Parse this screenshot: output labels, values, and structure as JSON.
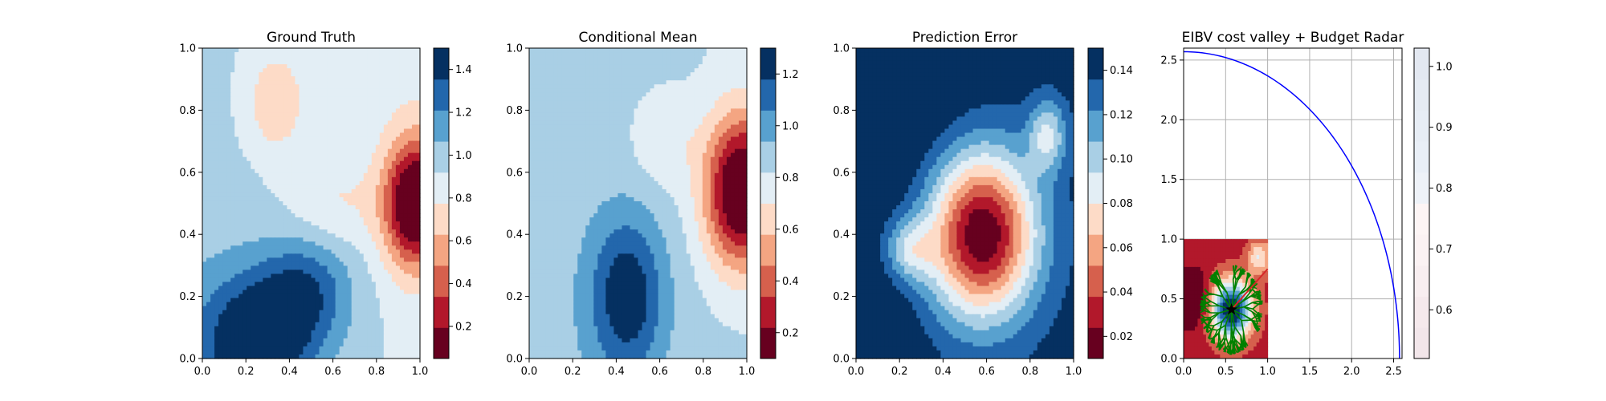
{
  "chart_data": [
    {
      "type": "heatmap",
      "title": "Ground Truth",
      "xlim": [
        0,
        1
      ],
      "ylim": [
        0,
        1
      ],
      "xticks": [
        "0.0",
        "0.2",
        "0.4",
        "0.6",
        "0.8",
        "1.0"
      ],
      "yticks": [
        "0.0",
        "0.2",
        "0.4",
        "0.6",
        "0.8",
        "1.0"
      ],
      "colormap": "RdBu",
      "colorbar": {
        "range": [
          0.05,
          1.5
        ],
        "ticks": [
          "0.2",
          "0.4",
          "0.6",
          "0.8",
          "1.0",
          "1.2",
          "1.4"
        ]
      },
      "field_features": [
        {
          "type": "blob",
          "x": 0.95,
          "y": 0.5,
          "value_delta": -0.9
        },
        {
          "type": "blob",
          "x": 0.3,
          "y": 0.8,
          "value_delta": -0.35
        },
        {
          "type": "blob",
          "x": 0.25,
          "y": 0.08,
          "value_delta": 0.6
        },
        {
          "type": "blob",
          "x": 0.45,
          "y": 0.25,
          "value_delta": 0.4
        }
      ]
    },
    {
      "type": "heatmap",
      "title": "Conditional Mean",
      "xlim": [
        0,
        1
      ],
      "ylim": [
        0,
        1
      ],
      "xticks": [
        "0.0",
        "0.2",
        "0.4",
        "0.6",
        "0.8",
        "1.0"
      ],
      "yticks": [
        "0.0",
        "0.2",
        "0.4",
        "0.6",
        "0.8",
        "1.0"
      ],
      "colormap": "RdBu",
      "colorbar": {
        "range": [
          0.1,
          1.3
        ],
        "ticks": [
          "0.2",
          "0.4",
          "0.6",
          "0.8",
          "1.0",
          "1.2"
        ]
      },
      "field_features": [
        {
          "type": "blob",
          "x": 0.97,
          "y": 0.55,
          "value_delta": -0.9
        },
        {
          "type": "blob",
          "x": 0.45,
          "y": 0.2,
          "value_delta": 0.3
        }
      ]
    },
    {
      "type": "heatmap",
      "title": "Prediction Error",
      "xlim": [
        0,
        1
      ],
      "ylim": [
        0,
        1
      ],
      "xticks": [
        "0.0",
        "0.2",
        "0.4",
        "0.6",
        "0.8",
        "1.0"
      ],
      "yticks": [
        "0.0",
        "0.2",
        "0.4",
        "0.6",
        "0.8",
        "1.0"
      ],
      "colormap": "RdBu",
      "colorbar": {
        "range": [
          0.01,
          0.15
        ],
        "ticks": [
          "0.02",
          "0.04",
          "0.06",
          "0.08",
          "0.10",
          "0.12",
          "0.14"
        ]
      },
      "field_features": [
        {
          "type": "blob",
          "x": 0.6,
          "y": 0.35,
          "value_delta": -0.13
        },
        {
          "type": "corner",
          "x": 0.0,
          "y": 1.0,
          "value": 0.15
        }
      ]
    },
    {
      "type": "heatmap",
      "title": "EIBV cost valley + Budget Radar",
      "xlim": [
        0,
        2.6
      ],
      "ylim": [
        0,
        2.6
      ],
      "xticks": [
        "0.0",
        "0.5",
        "1.0",
        "1.5",
        "2.0",
        "2.5"
      ],
      "yticks": [
        "0.0",
        "0.5",
        "1.0",
        "1.5",
        "2.0",
        "2.5"
      ],
      "grid": true,
      "colormap": "RdBu",
      "colorbar": {
        "range": [
          0.52,
          1.03
        ],
        "ticks": [
          "0.6",
          "0.7",
          "0.8",
          "0.9",
          "1.0"
        ]
      },
      "budget_radar": {
        "center": [
          0,
          0
        ],
        "radius": 2.57,
        "color": "#0000ff"
      },
      "current_location": {
        "x": 0.57,
        "y": 0.41,
        "marker": "star"
      },
      "path": [
        [
          0.57,
          0.41
        ],
        [
          1.0,
          0.75
        ]
      ],
      "tree_color": "#008000",
      "path_color": "#d62728"
    }
  ]
}
